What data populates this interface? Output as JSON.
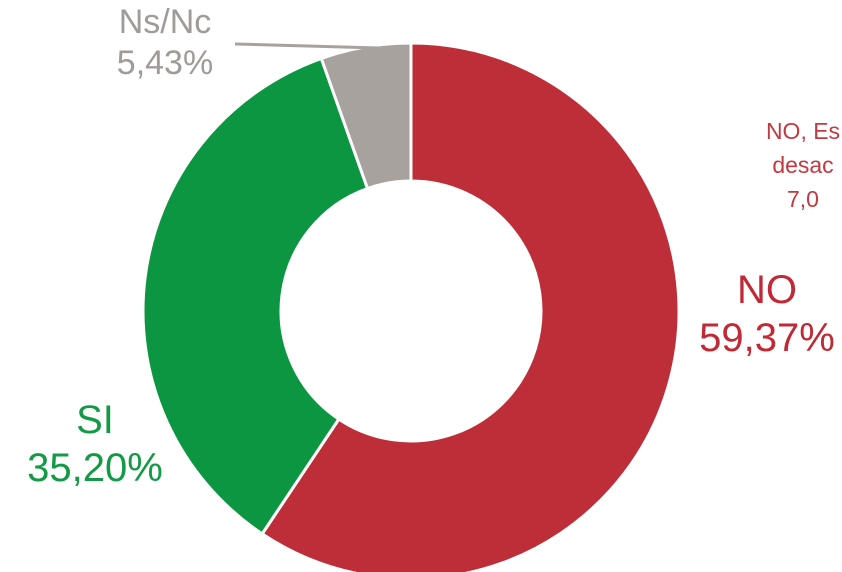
{
  "chart_data": {
    "type": "donut",
    "title": "",
    "slices": [
      {
        "label": "NO",
        "value": 59.37,
        "display": "59,37%",
        "color": "#be2e38"
      },
      {
        "label": "SI",
        "value": 35.2,
        "display": "35,20%",
        "color": "#0c9642"
      },
      {
        "label": "Ns/Nc",
        "value": 5.43,
        "display": "5,43%",
        "color": "#a8a29f"
      }
    ],
    "start_angle_deg": 0,
    "direction": "clockwise",
    "label_colors": {
      "NO": "#bf2a36",
      "SI": "#129a45",
      "Ns/Nc": "#9f9b98"
    },
    "annotations": {
      "no_extra_line1": "NO, Es",
      "no_extra_line2": "desac",
      "no_extra_line3": "7,0",
      "no_extra_color": "#c23a41"
    }
  }
}
